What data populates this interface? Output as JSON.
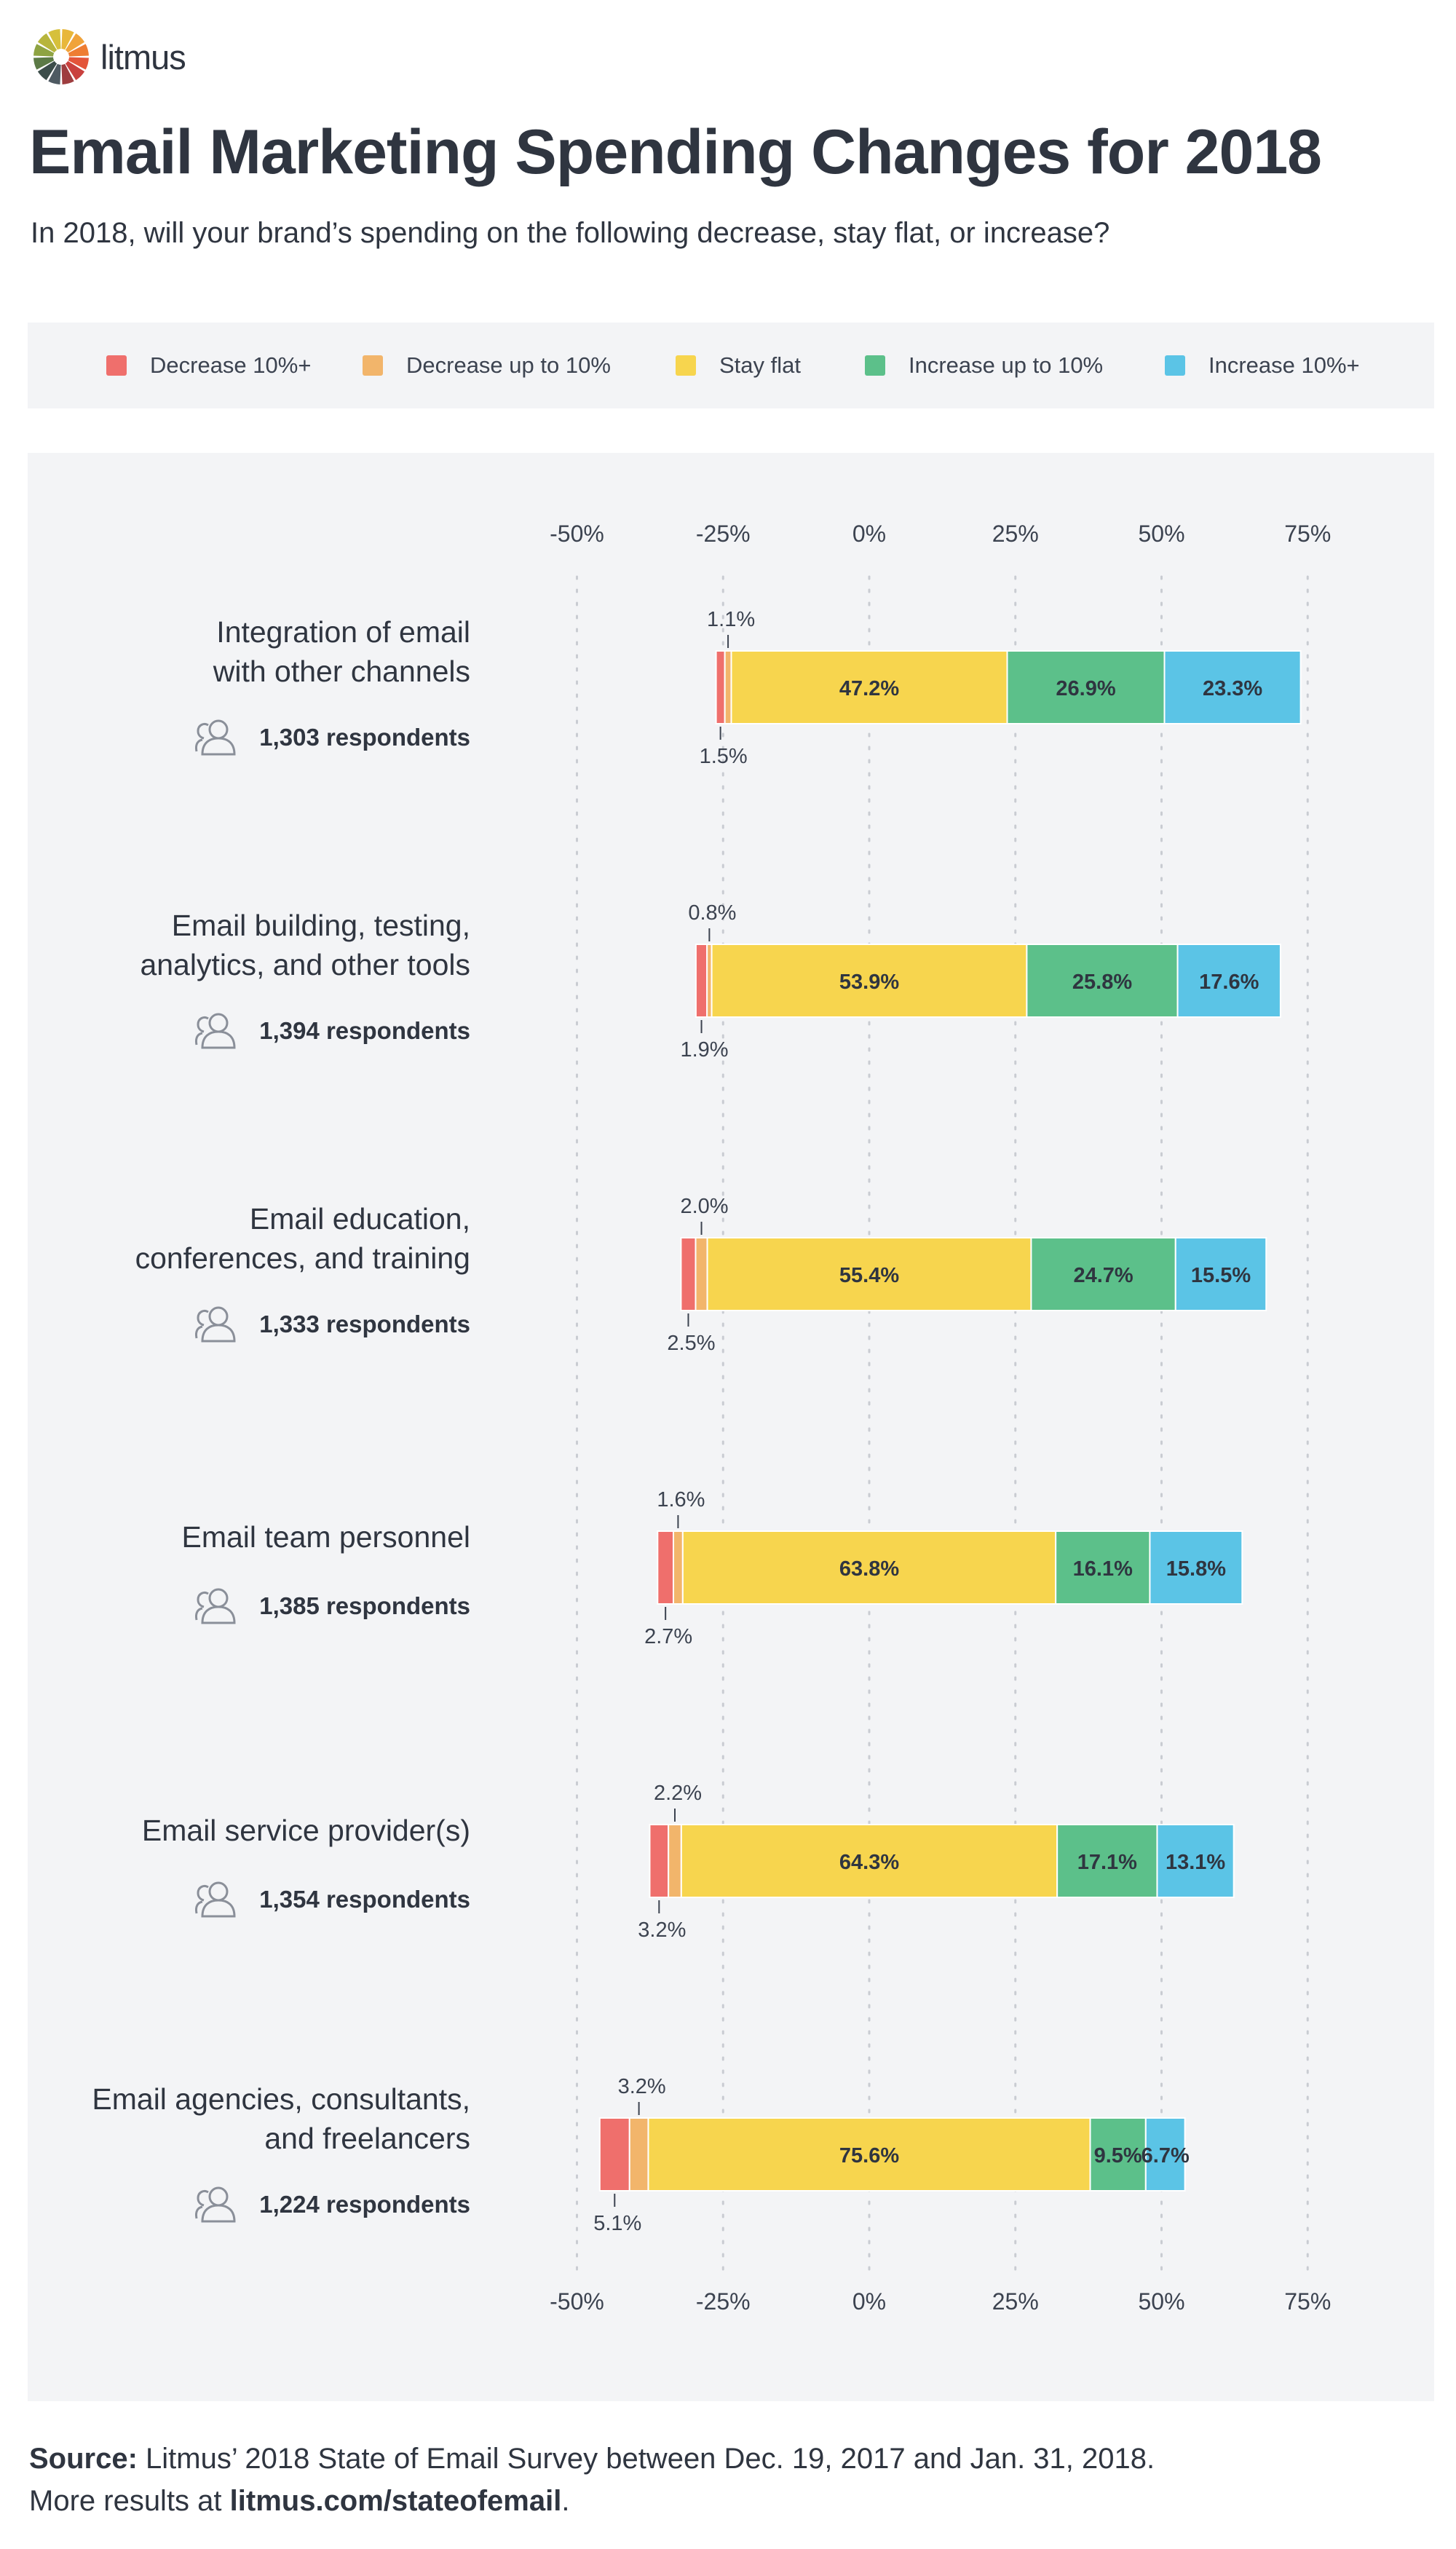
{
  "brand": {
    "name": "litmus",
    "logo_colors": [
      "#e8b73a",
      "#f0a33a",
      "#ee7d32",
      "#e3553a",
      "#c9413e",
      "#9e3d3f",
      "#4e5a62",
      "#3c4d4a",
      "#5c7a46",
      "#8ea342",
      "#b7b53c",
      "#d6c03b"
    ]
  },
  "header": {
    "title": "Email Marketing Spending Changes for 2018",
    "subtitle": "In 2018, will your brand’s spending on the following decrease, stay flat, or increase?"
  },
  "legend": [
    {
      "label": "Decrease 10%+",
      "color": "#ef6f6c"
    },
    {
      "label": "Decrease up to 10%",
      "color": "#f2b56b"
    },
    {
      "label": "Stay flat",
      "color": "#f7d54e"
    },
    {
      "label": "Increase up to 10%",
      "color": "#5cc08a"
    },
    {
      "label": "Increase 10%+",
      "color": "#5bc4e6"
    }
  ],
  "chart_data": {
    "type": "bar",
    "orientation": "horizontal diverging stacked",
    "x_ticks": [
      "-50%",
      "-25%",
      "0%",
      "25%",
      "50%",
      "75%"
    ],
    "xlim": [
      -50,
      75
    ],
    "grid": "vertical dotted",
    "legend_position": "top",
    "series": [
      {
        "name": "Decrease 10%+",
        "color": "#ef6f6c",
        "values": [
          1.5,
          1.9,
          2.5,
          2.7,
          3.2,
          5.1
        ]
      },
      {
        "name": "Decrease up to 10%",
        "color": "#f2b56b",
        "values": [
          1.1,
          0.8,
          2.0,
          1.6,
          2.2,
          3.2
        ]
      },
      {
        "name": "Stay flat",
        "color": "#f7d54e",
        "values": [
          47.2,
          53.9,
          55.4,
          63.8,
          64.3,
          75.6
        ]
      },
      {
        "name": "Increase up to 10%",
        "color": "#5cc08a",
        "values": [
          26.9,
          25.8,
          24.7,
          16.1,
          17.1,
          9.5
        ]
      },
      {
        "name": "Increase 10%+",
        "color": "#5bc4e6",
        "values": [
          23.3,
          17.6,
          15.5,
          15.8,
          13.1,
          6.7
        ]
      }
    ],
    "categories": [
      {
        "lines": [
          "Integration of email",
          "with other channels"
        ],
        "respondents": "1,303 respondents",
        "labels": [
          "1.5%",
          "1.1%",
          "47.2%",
          "26.9%",
          "23.3%"
        ]
      },
      {
        "lines": [
          "Email building, testing,",
          "analytics, and other tools"
        ],
        "respondents": "1,394 respondents",
        "labels": [
          "1.9%",
          "0.8%",
          "53.9%",
          "25.8%",
          "17.6%"
        ]
      },
      {
        "lines": [
          "Email education,",
          "conferences, and training"
        ],
        "respondents": "1,333 respondents",
        "labels": [
          "2.5%",
          "2.0%",
          "55.4%",
          "24.7%",
          "15.5%"
        ]
      },
      {
        "lines": [
          "Email team personnel"
        ],
        "respondents": "1,385 respondents",
        "labels": [
          "2.7%",
          "1.6%",
          "63.8%",
          "16.1%",
          "15.8%"
        ]
      },
      {
        "lines": [
          "Email service provider(s)"
        ],
        "respondents": "1,354 respondents",
        "labels": [
          "3.2%",
          "2.2%",
          "64.3%",
          "17.1%",
          "13.1%"
        ]
      },
      {
        "lines": [
          "Email agencies, consultants,",
          "and freelancers"
        ],
        "respondents": "1,224 respondents",
        "labels": [
          "5.1%",
          "3.2%",
          "75.6%",
          "9.5%",
          "6.7%"
        ]
      }
    ]
  },
  "source": {
    "bold": "Source:",
    "text": " Litmus’ 2018 State of Email Survey between Dec. 19, 2017 and Jan. 31, 2018.",
    "line2_prefix": "More results at ",
    "line2_link": "litmus.com/stateofemail",
    "line2_suffix": "."
  }
}
